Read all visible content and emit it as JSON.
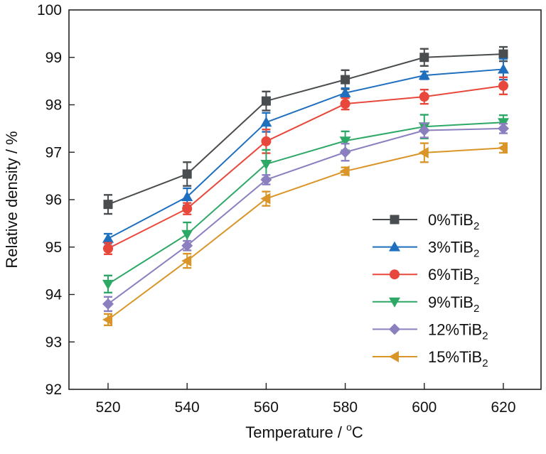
{
  "chart_data": {
    "type": "line",
    "title": "",
    "xlabel": "Temperature / °C",
    "xlabel_main": "Temperature / ",
    "xlabel_sup": "o",
    "xlabel_unit": "C",
    "ylabel": "Relative density / %",
    "x": [
      520,
      540,
      560,
      580,
      600,
      620
    ],
    "xticks": [
      520,
      540,
      560,
      580,
      600,
      620
    ],
    "xlim": [
      510,
      632
    ],
    "yticks": [
      92,
      93,
      94,
      95,
      96,
      97,
      98,
      99,
      100
    ],
    "ylim": [
      92,
      100
    ],
    "grid": false,
    "legend_position": "bottom-right",
    "error_bars": true,
    "series": [
      {
        "name": "0%TiB2",
        "label_main": "0%TiB",
        "label_sub": "2",
        "marker": "square",
        "color": "#4a4d4f",
        "values": [
          95.9,
          96.54,
          98.08,
          98.53,
          99.0,
          99.07
        ],
        "errors": [
          0.2,
          0.25,
          0.2,
          0.2,
          0.18,
          0.15
        ]
      },
      {
        "name": "3%TiB2",
        "label_main": "3%TiB",
        "label_sub": "2",
        "marker": "triangle-up",
        "color": "#1f6fbf",
        "values": [
          95.18,
          96.06,
          97.63,
          98.25,
          98.62,
          98.75
        ],
        "errors": [
          0.1,
          0.18,
          0.2,
          0.1,
          0.08,
          0.22
        ]
      },
      {
        "name": "6%TiB2",
        "label_main": "6%TiB",
        "label_sub": "2",
        "marker": "circle",
        "color": "#e8483b",
        "values": [
          94.97,
          95.81,
          97.23,
          98.02,
          98.17,
          98.4
        ],
        "errors": [
          0.12,
          0.12,
          0.25,
          0.12,
          0.15,
          0.18
        ]
      },
      {
        "name": "9%TiB2",
        "label_main": "9%TiB",
        "label_sub": "2",
        "marker": "triangle-down",
        "color": "#2ea866",
        "values": [
          94.22,
          95.27,
          96.75,
          97.24,
          97.54,
          97.63
        ],
        "errors": [
          0.18,
          0.25,
          0.3,
          0.2,
          0.25,
          0.15
        ]
      },
      {
        "name": "12%TiB2",
        "label_main": "12%TiB",
        "label_sub": "2",
        "marker": "diamond",
        "color": "#8b7fc0",
        "values": [
          93.8,
          95.03,
          96.42,
          97.0,
          97.46,
          97.5
        ],
        "errors": [
          0.15,
          0.1,
          0.1,
          0.18,
          0.15,
          0.1
        ]
      },
      {
        "name": "15%TiB2",
        "label_main": "15%TiB",
        "label_sub": "2",
        "marker": "triangle-left",
        "color": "#d99528",
        "values": [
          93.47,
          94.71,
          96.02,
          96.6,
          96.99,
          97.09
        ],
        "errors": [
          0.12,
          0.15,
          0.15,
          0.08,
          0.2,
          0.1
        ]
      }
    ]
  }
}
